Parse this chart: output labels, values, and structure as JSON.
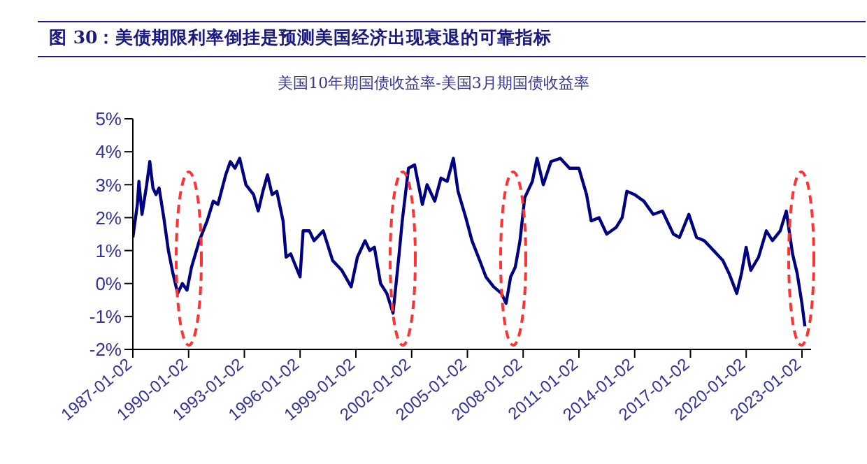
{
  "chart_data": {
    "type": "line",
    "title": "图 30：美债期限利率倒挂是预测美国经济出现衰退的可靠指标",
    "subtitle": "美国10年期国债收益率-美国3月期国债收益率",
    "x": [
      "1987-01-02",
      "1987-04",
      "1987-05",
      "1987-07",
      "1987-10",
      "1987-12",
      "1988-02",
      "1988-04",
      "1988-06",
      "1988-09",
      "1988-12",
      "1989-03",
      "1989-06",
      "1989-09",
      "1989-12",
      "1990-03",
      "1990-08",
      "1991-01",
      "1991-05",
      "1991-08",
      "1992-01",
      "1992-04",
      "1992-07",
      "1992-10",
      "1993-02",
      "1993-07",
      "1993-10",
      "1994-01",
      "1994-04",
      "1994-07",
      "1994-10",
      "1995-02",
      "1995-04",
      "1995-07",
      "1996-01",
      "1996-03",
      "1996-07",
      "1996-10",
      "1997-04",
      "1997-10",
      "1998-04",
      "1998-10",
      "1999-02",
      "1999-07",
      "1999-10",
      "2000-01",
      "2000-05",
      "2000-09",
      "2001-01",
      "2001-05",
      "2001-07",
      "2001-11",
      "2002-03",
      "2002-08",
      "2002-11",
      "2003-04",
      "2003-08",
      "2003-12",
      "2004-04",
      "2004-07",
      "2004-12",
      "2005-04",
      "2005-09",
      "2006-01",
      "2006-06",
      "2006-11",
      "2007-02",
      "2007-05",
      "2007-08",
      "2007-11",
      "2008-02",
      "2008-07",
      "2008-10",
      "2009-02",
      "2009-07",
      "2010-01",
      "2010-07",
      "2011-01",
      "2011-06",
      "2011-09",
      "2012-02",
      "2012-07",
      "2013-01",
      "2013-05",
      "2013-08",
      "2014-01",
      "2014-07",
      "2015-01",
      "2015-07",
      "2016-02",
      "2016-06",
      "2016-12",
      "2017-05",
      "2017-10",
      "2018-04",
      "2018-10",
      "2019-02",
      "2019-07",
      "2019-10",
      "2020-01",
      "2020-04",
      "2020-09",
      "2021-02",
      "2021-06",
      "2021-11",
      "2022-03",
      "2022-07",
      "2022-10",
      "2023-01",
      "2023-03"
    ],
    "series": [
      {
        "color": "#000080",
        "values": [
          1.4,
          2.4,
          3.1,
          2.1,
          3.0,
          3.7,
          2.9,
          2.7,
          2.9,
          2.0,
          1.0,
          0.3,
          -0.3,
          0.0,
          -0.2,
          0.5,
          1.3,
          1.9,
          2.5,
          2.4,
          3.3,
          3.7,
          3.5,
          3.8,
          3.0,
          2.7,
          2.2,
          2.8,
          3.3,
          2.7,
          2.8,
          1.9,
          0.8,
          0.9,
          0.2,
          1.6,
          1.6,
          1.3,
          1.6,
          0.7,
          0.4,
          -0.1,
          0.8,
          1.3,
          1.0,
          1.1,
          0.0,
          -0.3,
          -0.9,
          0.9,
          1.9,
          3.5,
          3.6,
          2.4,
          3.0,
          2.5,
          3.2,
          3.1,
          3.8,
          2.8,
          2.0,
          1.3,
          0.7,
          0.2,
          -0.1,
          -0.3,
          -0.6,
          0.2,
          0.5,
          1.3,
          2.6,
          3.1,
          3.8,
          3.0,
          3.7,
          3.8,
          3.5,
          3.5,
          2.7,
          1.9,
          2.0,
          1.5,
          1.7,
          2.0,
          2.8,
          2.7,
          2.5,
          2.1,
          2.2,
          1.5,
          1.4,
          2.1,
          1.4,
          1.3,
          1.0,
          0.7,
          0.3,
          -0.3,
          0.3,
          1.1,
          0.4,
          0.8,
          1.6,
          1.3,
          1.6,
          2.2,
          0.9,
          0.3,
          -0.6,
          -1.3
        ]
      }
    ],
    "xlim": [
      "1987-01-02",
      "2023-06-30"
    ],
    "xticks": [
      "1987-01-02",
      "1990-01-02",
      "1993-01-02",
      "1996-01-02",
      "1999-01-02",
      "2002-01-02",
      "2005-01-02",
      "2008-01-02",
      "2011-01-02",
      "2014-01-02",
      "2017-01-02",
      "2020-01-02",
      "2023-01-02"
    ],
    "ylim": [
      -2,
      5
    ],
    "yticks": [
      {
        "value": -2,
        "label": "-2%"
      },
      {
        "value": -1,
        "label": "-1%"
      },
      {
        "value": 0,
        "label": "0%"
      },
      {
        "value": 1,
        "label": "1%"
      },
      {
        "value": 2,
        "label": "2%"
      },
      {
        "value": 3,
        "label": "3%"
      },
      {
        "value": 4,
        "label": "4%"
      },
      {
        "value": 5,
        "label": "5%"
      }
    ],
    "grid": false,
    "legend": false,
    "marker": "none",
    "line_style": "solid"
  }
}
